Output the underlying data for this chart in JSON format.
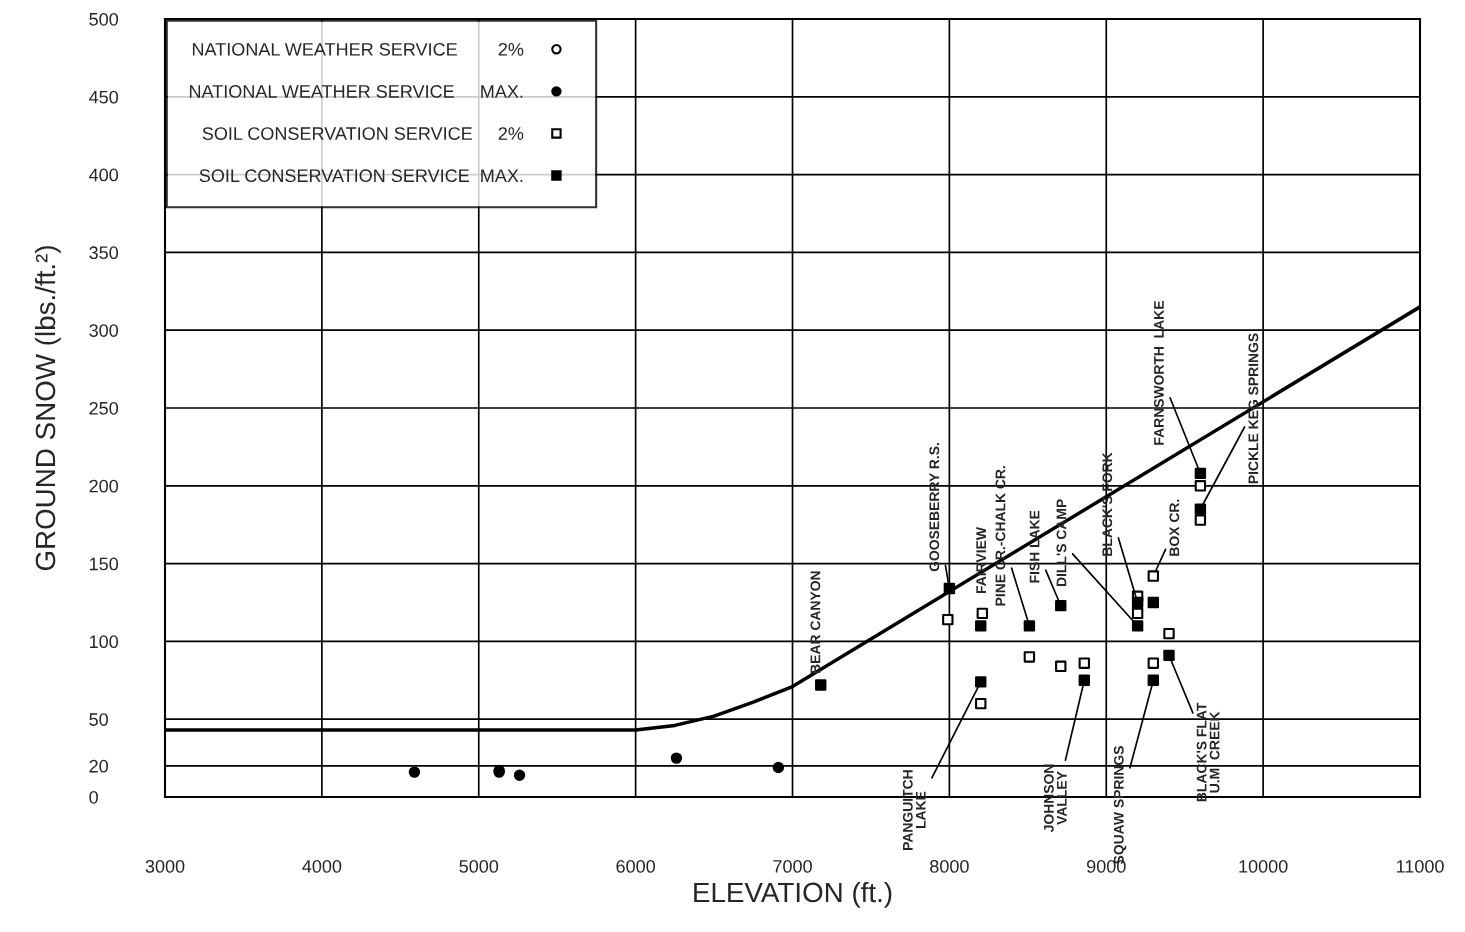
{
  "chart_data": {
    "type": "scatter",
    "xlabel": "ELEVATION (ft.)",
    "ylabel": "GROUND SNOW (lbs./ft.²)",
    "xlim": [
      3000,
      11000
    ],
    "ylim": [
      0,
      500
    ],
    "xticks": [
      3000,
      4000,
      5000,
      6000,
      7000,
      8000,
      9000,
      10000,
      11000
    ],
    "yticks": [
      0,
      20,
      50,
      100,
      150,
      200,
      250,
      300,
      350,
      400,
      450,
      500
    ],
    "grid": true,
    "legend": "top left",
    "series": [
      {
        "type": "line",
        "color": "#000000",
        "x": [
          3000,
          6000,
          6250,
          6500,
          6750,
          7000,
          11000
        ],
        "values": [
          43,
          43,
          46,
          52,
          61,
          71,
          315
        ],
        "marker": "none"
      },
      {
        "name": "NATIONAL WEATHER SERVICE        2%",
        "color": "#000000",
        "marker": "circle",
        "x": [
          5130
        ],
        "values": [
          17
        ]
      },
      {
        "name": "NATIONAL WEATHER SERVICE     MAX.",
        "color": "#000000",
        "marker": "circle",
        "x": [
          4590,
          5130,
          5260,
          6260,
          6910
        ],
        "values": [
          16,
          16,
          14,
          25,
          19
        ]
      },
      {
        "name": "SOIL CONSERVATION SERVICE     2%",
        "color": "#000000",
        "marker": "square",
        "x": [
          7990,
          8210,
          8200,
          8510,
          8710,
          8860,
          9200,
          9200,
          9300,
          9300,
          9400,
          9600,
          9600
        ],
        "values": [
          114,
          118,
          60,
          90,
          84,
          86,
          118,
          129,
          142,
          86,
          105,
          200,
          178
        ]
      },
      {
        "name": "SOIL CONSERVATION SERVICE  MAX.",
        "color": "#000000",
        "marker": "square",
        "x": [
          7180,
          8000,
          8200,
          8200,
          8510,
          8710,
          8860,
          9200,
          9200,
          9300,
          9300,
          9400,
          9600,
          9600
        ],
        "values": [
          72,
          134,
          110,
          74,
          110,
          123,
          75,
          110,
          125,
          125,
          75,
          91,
          208,
          185
        ]
      }
    ],
    "annotations": [
      {
        "text": "BEAR CANYON",
        "x": 7180,
        "y": 72
      },
      {
        "text": "GOOSEBERRY R.S.",
        "x": 8000,
        "y": 134
      },
      {
        "text": "FAIRVIEW",
        "x": 8210,
        "y": 118
      },
      {
        "text": "PINE CR.-CHALK CR.",
        "x": 8510,
        "y": 110
      },
      {
        "text": "FISH LAKE",
        "x": 8710,
        "y": 123
      },
      {
        "text": "DILL'S CAMP",
        "x": 9200,
        "y": 110
      },
      {
        "text": "BLACK'S FORK",
        "x": 9200,
        "y": 125
      },
      {
        "text": "BOX CR.",
        "x": 9300,
        "y": 142
      },
      {
        "text": "FARNSWORTH  LAKE",
        "x": 9600,
        "y": 208
      },
      {
        "text": "PICKLE KEG SPRINGS",
        "x": 9600,
        "y": 185
      },
      {
        "text": "PANGUITCH\nLAKE",
        "x": 8200,
        "y": 74
      },
      {
        "text": "JOHNSON\nVALLEY",
        "x": 8860,
        "y": 75
      },
      {
        "text": "SQUAW SPRINGS",
        "x": 9300,
        "y": 75
      },
      {
        "text": "BLACK'S FLAT\nU.M. CREEK",
        "x": 9400,
        "y": 91
      }
    ]
  }
}
